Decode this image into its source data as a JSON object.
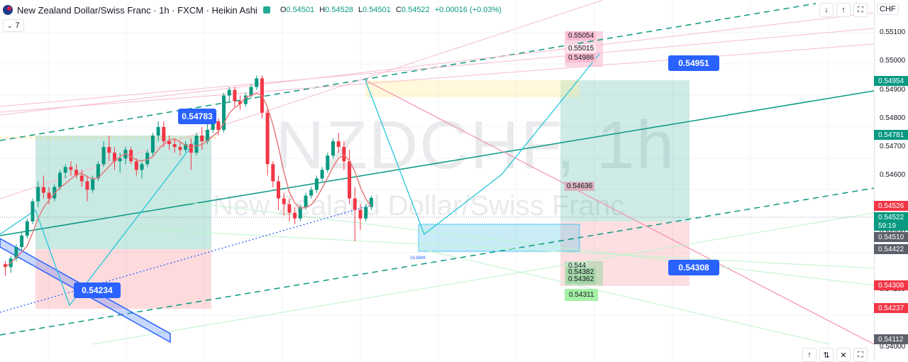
{
  "header": {
    "symbol_title": "New Zealand Dollar/Swiss Franc · 1h · FXCM · Heikin Ashi",
    "open_label": "O",
    "open": "0.54501",
    "high_label": "H",
    "high": "0.54528",
    "low_label": "L",
    "low": "0.54501",
    "close_label": "C",
    "close": "0.54522",
    "change": "+0.00016 (+0.03%)",
    "indicator_count": "7"
  },
  "watermark": {
    "symbol": "NZDCHF, 1h",
    "name": "New Zealand Dollar/Swiss Franc"
  },
  "axis": {
    "currency": "CHF",
    "ticks": [
      "0.55100",
      "0.55000",
      "0.54900",
      "0.54800",
      "0.54700",
      "0.54600",
      "0.54400",
      "0.54200",
      "0.54000"
    ],
    "badges": [
      {
        "value": "0.54954",
        "color": "#089981"
      },
      {
        "value": "0.54781",
        "color": "#089981"
      },
      {
        "value": "0.54526",
        "color": "#f23645"
      },
      {
        "value": "0.54522",
        "color": "#089981"
      },
      {
        "value": "59:19",
        "color": "#089981"
      },
      {
        "value": "0.54510",
        "color": "#5d606b"
      },
      {
        "value": "0.54422",
        "color": "#5d606b"
      },
      {
        "value": "0.54308",
        "color": "#f23645"
      },
      {
        "value": "0.54237",
        "color": "#f23645"
      },
      {
        "value": "0.54112",
        "color": "#5d606b"
      }
    ]
  },
  "callouts": {
    "c1": "0.54783",
    "c2": "0.54234",
    "c3": "0.54951",
    "c4": "0.54308"
  },
  "pink_labels": [
    "0.55054",
    "0.55015",
    "0.54986",
    "0.54636"
  ],
  "green_labels": [
    "0.544",
    "0.54382",
    "0.54362",
    "0.54311"
  ],
  "range_note": "16.688K",
  "toolbar": {
    "down_icon": "arrow-down-icon",
    "up_icon": "arrow-up-icon",
    "swap_icon": "swap-icon",
    "fullscreen_icon": "fullscreen-icon"
  },
  "colors": {
    "up": "#089981",
    "down": "#f23645",
    "accent": "#2962ff"
  },
  "chart_data": {
    "type": "candlestick",
    "style": "Heikin Ashi",
    "ylim": [
      0.54,
      0.5515
    ],
    "candles": [
      [
        0.5429,
        0.543,
        0.5425,
        0.5428
      ],
      [
        0.5428,
        0.5432,
        0.5426,
        0.5431
      ],
      [
        0.5431,
        0.5436,
        0.543,
        0.5435
      ],
      [
        0.5435,
        0.544,
        0.5434,
        0.5439
      ],
      [
        0.5439,
        0.5445,
        0.5438,
        0.5444
      ],
      [
        0.5444,
        0.5452,
        0.5443,
        0.5451
      ],
      [
        0.5451,
        0.5458,
        0.5449,
        0.5456
      ],
      [
        0.5456,
        0.546,
        0.5452,
        0.5454
      ],
      [
        0.5454,
        0.5456,
        0.545,
        0.5452
      ],
      [
        0.5452,
        0.5457,
        0.5451,
        0.5456
      ],
      [
        0.5456,
        0.5462,
        0.5455,
        0.5461
      ],
      [
        0.5461,
        0.5464,
        0.5459,
        0.5463
      ],
      [
        0.5463,
        0.5465,
        0.546,
        0.5462
      ],
      [
        0.5462,
        0.5464,
        0.5459,
        0.546
      ],
      [
        0.546,
        0.5462,
        0.5456,
        0.5458
      ],
      [
        0.5458,
        0.546,
        0.5451,
        0.5455
      ],
      [
        0.5455,
        0.546,
        0.5454,
        0.5459
      ],
      [
        0.5459,
        0.5465,
        0.5458,
        0.5464
      ],
      [
        0.5464,
        0.5472,
        0.5463,
        0.547
      ],
      [
        0.547,
        0.5474,
        0.5465,
        0.5468
      ],
      [
        0.5468,
        0.547,
        0.5462,
        0.5465
      ],
      [
        0.5465,
        0.5468,
        0.5461,
        0.5466
      ],
      [
        0.5466,
        0.547,
        0.5464,
        0.5469
      ],
      [
        0.5469,
        0.547,
        0.5464,
        0.5465
      ],
      [
        0.5465,
        0.5466,
        0.546,
        0.5462
      ],
      [
        0.5462,
        0.5465,
        0.5459,
        0.5464
      ],
      [
        0.5464,
        0.5469,
        0.5463,
        0.5468
      ],
      [
        0.5468,
        0.5475,
        0.5467,
        0.5474
      ],
      [
        0.5474,
        0.5479,
        0.5472,
        0.5477
      ],
      [
        0.5477,
        0.5479,
        0.547,
        0.5472
      ],
      [
        0.5472,
        0.5474,
        0.5469,
        0.5471
      ],
      [
        0.5471,
        0.5473,
        0.5468,
        0.547
      ],
      [
        0.547,
        0.5472,
        0.5467,
        0.5469
      ],
      [
        0.5469,
        0.5472,
        0.5468,
        0.5471
      ],
      [
        0.5471,
        0.5473,
        0.5462,
        0.5468
      ],
      [
        0.5468,
        0.5475,
        0.5467,
        0.5474
      ],
      [
        0.5474,
        0.5477,
        0.5469,
        0.5472
      ],
      [
        0.5472,
        0.5478,
        0.5471,
        0.5476
      ],
      [
        0.5476,
        0.548,
        0.5475,
        0.5479
      ],
      [
        0.5479,
        0.548,
        0.5474,
        0.5476
      ],
      [
        0.5476,
        0.5489,
        0.5475,
        0.5488
      ],
      [
        0.5488,
        0.5491,
        0.5486,
        0.549
      ],
      [
        0.549,
        0.5491,
        0.5484,
        0.5486
      ],
      [
        0.5486,
        0.5488,
        0.5483,
        0.5485
      ],
      [
        0.5485,
        0.5489,
        0.5484,
        0.5488
      ],
      [
        0.5488,
        0.5492,
        0.5487,
        0.5491
      ],
      [
        0.5491,
        0.5495,
        0.549,
        0.5494
      ],
      [
        0.5494,
        0.5495,
        0.548,
        0.5482
      ],
      [
        0.5482,
        0.5483,
        0.546,
        0.5464
      ],
      [
        0.5464,
        0.5465,
        0.5456,
        0.5458
      ],
      [
        0.5458,
        0.546,
        0.5448,
        0.5452
      ],
      [
        0.5452,
        0.5454,
        0.5446,
        0.545
      ],
      [
        0.545,
        0.5452,
        0.5444,
        0.5447
      ],
      [
        0.5447,
        0.5449,
        0.5443,
        0.5445
      ],
      [
        0.5445,
        0.545,
        0.5444,
        0.5449
      ],
      [
        0.5449,
        0.5454,
        0.5448,
        0.5453
      ],
      [
        0.5453,
        0.5456,
        0.5452,
        0.5455
      ],
      [
        0.5455,
        0.546,
        0.5454,
        0.5459
      ],
      [
        0.5459,
        0.5463,
        0.5458,
        0.5462
      ],
      [
        0.5462,
        0.5468,
        0.5461,
        0.5467
      ],
      [
        0.5467,
        0.5473,
        0.5466,
        0.5472
      ],
      [
        0.5472,
        0.5475,
        0.5468,
        0.547
      ],
      [
        0.547,
        0.5472,
        0.5462,
        0.5465
      ],
      [
        0.5465,
        0.5469,
        0.545,
        0.5452
      ],
      [
        0.5452,
        0.5456,
        0.5437,
        0.5448
      ],
      [
        0.5448,
        0.545,
        0.5441,
        0.5445
      ],
      [
        0.5445,
        0.545,
        0.5444,
        0.5449
      ],
      [
        0.5449,
        0.5453,
        0.5448,
        0.54522
      ]
    ]
  }
}
